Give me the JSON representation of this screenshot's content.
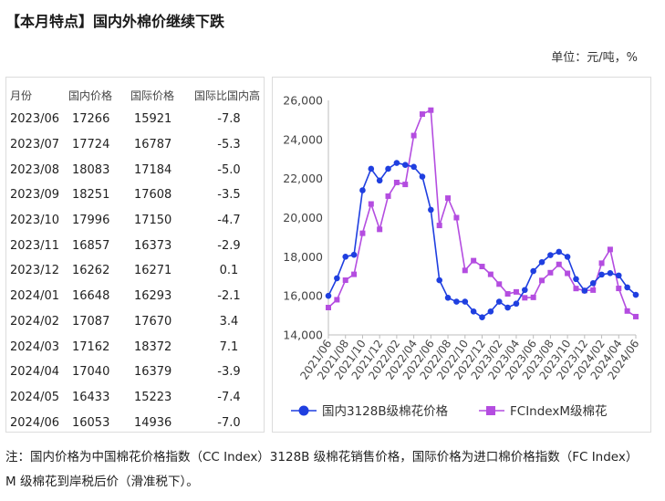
{
  "header": {
    "title": "【本月特点】国内外棉价继续下跌",
    "unit": "单位：元/吨，%"
  },
  "table": {
    "columns": [
      "月份",
      "国内价格",
      "国际价格",
      "国际比国内高"
    ],
    "rows": [
      [
        "2023/06",
        "17266",
        "15921",
        "-7.8"
      ],
      [
        "2023/07",
        "17724",
        "16787",
        "-5.3"
      ],
      [
        "2023/08",
        "18083",
        "17184",
        "-5.0"
      ],
      [
        "2023/09",
        "18251",
        "17608",
        "-3.5"
      ],
      [
        "2023/10",
        "17996",
        "17150",
        "-4.7"
      ],
      [
        "2023/11",
        "16857",
        "16373",
        "-2.9"
      ],
      [
        "2023/12",
        "16262",
        "16271",
        "0.1"
      ],
      [
        "2024/01",
        "16648",
        "16293",
        "-2.1"
      ],
      [
        "2024/02",
        "17087",
        "17670",
        "3.4"
      ],
      [
        "2024/03",
        "17162",
        "18372",
        "7.1"
      ],
      [
        "2024/04",
        "17040",
        "16379",
        "-3.9"
      ],
      [
        "2024/05",
        "16433",
        "15223",
        "-7.4"
      ],
      [
        "2024/06",
        "16053",
        "14936",
        "-7.0"
      ]
    ]
  },
  "chart_data": {
    "type": "line",
    "title": "",
    "xlabel": "",
    "ylabel": "",
    "ylim": [
      14000,
      26000
    ],
    "yticks": [
      14000,
      16000,
      18000,
      20000,
      22000,
      24000,
      26000
    ],
    "ytick_labels": [
      "14,000",
      "16,000",
      "18,000",
      "20,000",
      "22,000",
      "24,000",
      "26,000"
    ],
    "grid": false,
    "legend": "bottom",
    "x": [
      "2021/06",
      "2021/07",
      "2021/08",
      "2021/09",
      "2021/10",
      "2021/11",
      "2021/12",
      "2022/01",
      "2022/02",
      "2022/03",
      "2022/04",
      "2022/05",
      "2022/06",
      "2022/07",
      "2022/08",
      "2022/09",
      "2022/10",
      "2022/11",
      "2022/12",
      "2023/01",
      "2023/02",
      "2023/03",
      "2023/04",
      "2023/05",
      "2023/06",
      "2023/07",
      "2023/08",
      "2023/09",
      "2023/10",
      "2023/11",
      "2023/12",
      "2024/01",
      "2024/02",
      "2024/03",
      "2024/04",
      "2024/05",
      "2024/06"
    ],
    "xtick_labels": [
      "2021/06",
      "2021/08",
      "2021/10",
      "2021/12",
      "2022/02",
      "2022/04",
      "2022/06",
      "2022/08",
      "2022/10",
      "2022/12",
      "2023/02",
      "2023/04",
      "2023/06",
      "2023/08",
      "2023/10",
      "2023/12",
      "2024/02",
      "2024/04",
      "2024/06"
    ],
    "series": [
      {
        "name": "国内3128B级棉花价格",
        "color": "#1f3fe0",
        "marker": "circle",
        "values": [
          16000,
          16900,
          18000,
          18100,
          21400,
          22500,
          21900,
          22500,
          22800,
          22700,
          22600,
          22100,
          20400,
          16800,
          15900,
          15700,
          15700,
          15200,
          14900,
          15200,
          15700,
          15400,
          15600,
          16300,
          17266,
          17724,
          18083,
          18251,
          17996,
          16857,
          16262,
          16648,
          17087,
          17162,
          17040,
          16433,
          16053
        ]
      },
      {
        "name": "FCIndexM级棉花",
        "color": "#b44de0",
        "marker": "square",
        "values": [
          15400,
          15800,
          16800,
          17100,
          19200,
          20700,
          19400,
          21100,
          21800,
          21700,
          24200,
          25300,
          25500,
          19600,
          21000,
          20000,
          17300,
          17800,
          17500,
          17100,
          16600,
          16100,
          16200,
          15900,
          15921,
          16787,
          17184,
          17608,
          17150,
          16373,
          16271,
          16293,
          17670,
          18372,
          16379,
          15223,
          14936
        ]
      }
    ]
  },
  "note": "注：国内价格为中国棉花价格指数（CC Index）3128B 级棉花销售价格，国际价格为进口棉价格指数（FC Index） M 级棉花到岸税后价（滑准税下）。"
}
